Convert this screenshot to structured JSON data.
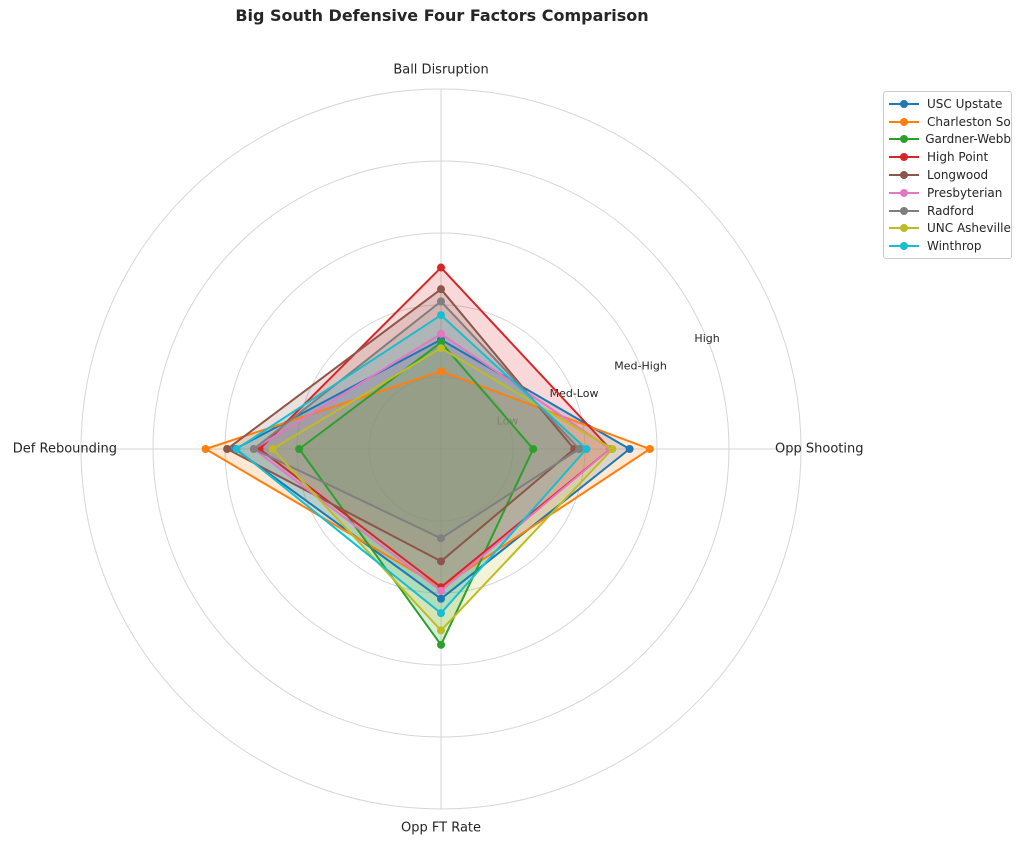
{
  "chart_data": {
    "type": "radar",
    "title": "Big South Defensive Four Factors Comparison",
    "axes": [
      "Ball Disruption",
      "Opp Shooting",
      "Opp FT Rate",
      "Def Rebounding"
    ],
    "radial_tick_labels": [
      "Low",
      "Med-Low",
      "Med-High",
      "High"
    ],
    "radial_range": [
      0,
      5
    ],
    "grid": true,
    "legend_position": "top-right",
    "series": [
      {
        "name": "USC Upstate",
        "color": "#1f77b4",
        "values": [
          1.52,
          2.62,
          2.08,
          2.86
        ]
      },
      {
        "name": "Charleston So",
        "color": "#ff7f0e",
        "values": [
          1.08,
          2.9,
          1.92,
          3.27
        ]
      },
      {
        "name": "Gardner-Webb",
        "color": "#2ca02c",
        "values": [
          1.48,
          1.28,
          2.72,
          1.97
        ]
      },
      {
        "name": "High Point",
        "color": "#d62728",
        "values": [
          2.52,
          2.35,
          1.92,
          2.52
        ]
      },
      {
        "name": "Longwood",
        "color": "#8c564b",
        "values": [
          2.22,
          1.85,
          1.56,
          2.97
        ]
      },
      {
        "name": "Presbyterian",
        "color": "#e377c2",
        "values": [
          1.6,
          2.35,
          1.97,
          2.6
        ]
      },
      {
        "name": "Radford",
        "color": "#7f7f7f",
        "values": [
          2.05,
          1.92,
          1.24,
          2.6
        ]
      },
      {
        "name": "UNC Asheville",
        "color": "#bcbd22",
        "values": [
          1.4,
          2.38,
          2.52,
          2.34
        ]
      },
      {
        "name": "Winthrop",
        "color": "#17becf",
        "values": [
          1.86,
          2.02,
          2.28,
          2.84
        ]
      }
    ]
  }
}
